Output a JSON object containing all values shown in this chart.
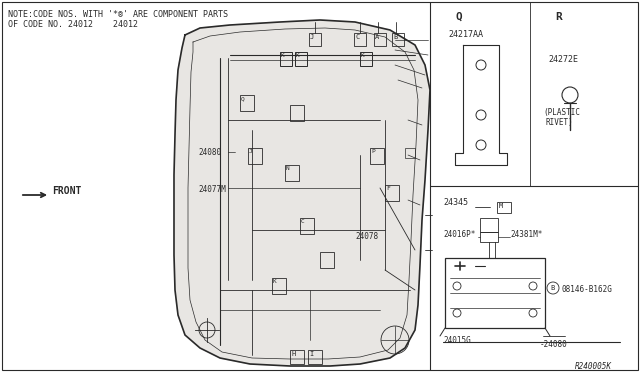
{
  "bg_color": "#f0eeeb",
  "line_color": "#2a2a2a",
  "figsize": [
    6.4,
    3.72
  ],
  "dpi": 100,
  "note_line1": "NOTE:CODE NOS. WITH '*®' ARE COMPONENT PARTS",
  "note_line2": "OF CODE NO. 24012    24012",
  "ref_code": "R240005K",
  "gray_body": "#c8c8c8",
  "light_gray": "#e0e0e0"
}
